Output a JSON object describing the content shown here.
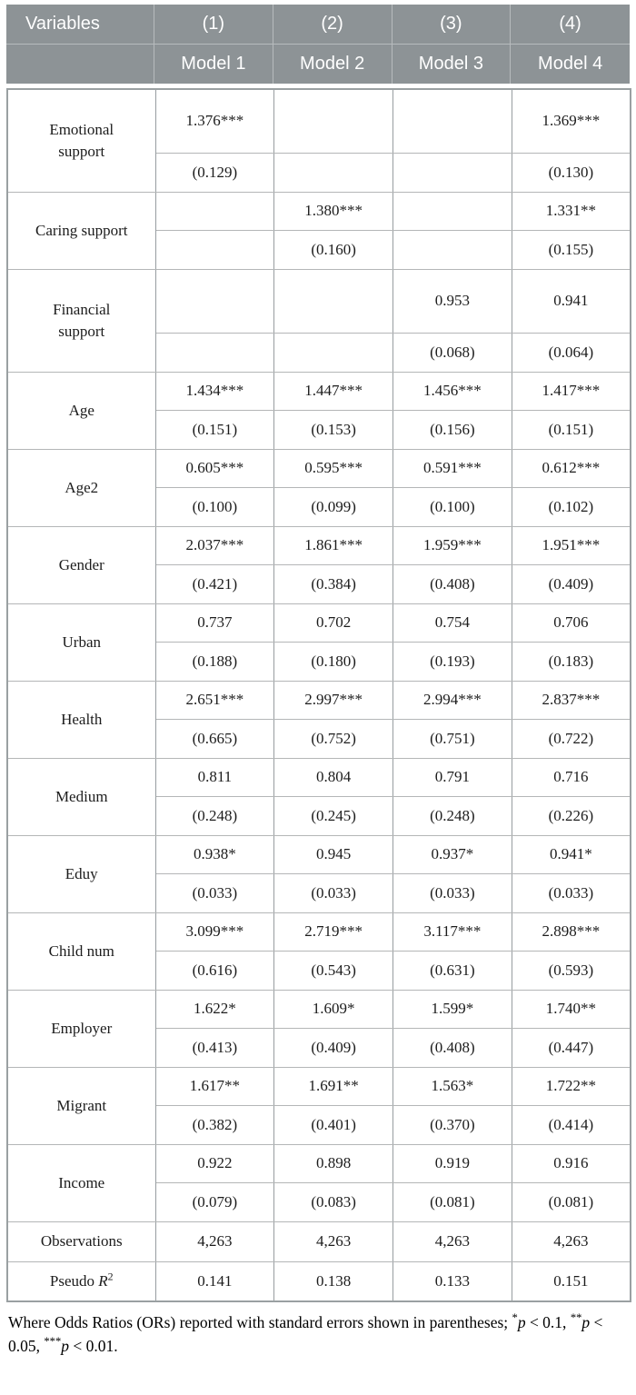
{
  "table": {
    "header": {
      "variables_label": "Variables",
      "col_numbers": [
        "(1)",
        "(2)",
        "(3)",
        "(4)"
      ],
      "model_names": [
        "Model 1",
        "Model 2",
        "Model 3",
        "Model 4"
      ]
    },
    "rows": [
      {
        "label": "Emotional\nsupport",
        "tall": true,
        "or": [
          "1.376***",
          "",
          "",
          "1.369***"
        ],
        "se": [
          "(0.129)",
          "",
          "",
          "(0.130)"
        ]
      },
      {
        "label": "Caring support",
        "or": [
          "",
          "1.380***",
          "",
          "1.331**"
        ],
        "se": [
          "",
          "(0.160)",
          "",
          "(0.155)"
        ]
      },
      {
        "label": "Financial\nsupport",
        "tall": true,
        "or": [
          "",
          "",
          "0.953",
          "0.941"
        ],
        "se": [
          "",
          "",
          "(0.068)",
          "(0.064)"
        ]
      },
      {
        "label": "Age",
        "or": [
          "1.434***",
          "1.447***",
          "1.456***",
          "1.417***"
        ],
        "se": [
          "(0.151)",
          "(0.153)",
          "(0.156)",
          "(0.151)"
        ]
      },
      {
        "label": "Age2",
        "or": [
          "0.605***",
          "0.595***",
          "0.591***",
          "0.612***"
        ],
        "se": [
          "(0.100)",
          "(0.099)",
          "(0.100)",
          "(0.102)"
        ]
      },
      {
        "label": "Gender",
        "or": [
          "2.037***",
          "1.861***",
          "1.959***",
          "1.951***"
        ],
        "se": [
          "(0.421)",
          "(0.384)",
          "(0.408)",
          "(0.409)"
        ]
      },
      {
        "label": "Urban",
        "or": [
          "0.737",
          "0.702",
          "0.754",
          "0.706"
        ],
        "se": [
          "(0.188)",
          "(0.180)",
          "(0.193)",
          "(0.183)"
        ]
      },
      {
        "label": "Health",
        "or": [
          "2.651***",
          "2.997***",
          "2.994***",
          "2.837***"
        ],
        "se": [
          "(0.665)",
          "(0.752)",
          "(0.751)",
          "(0.722)"
        ]
      },
      {
        "label": "Medium",
        "or": [
          "0.811",
          "0.804",
          "0.791",
          "0.716"
        ],
        "se": [
          "(0.248)",
          "(0.245)",
          "(0.248)",
          "(0.226)"
        ]
      },
      {
        "label": "Eduy",
        "or": [
          "0.938*",
          "0.945",
          "0.937*",
          "0.941*"
        ],
        "se": [
          "(0.033)",
          "(0.033)",
          "(0.033)",
          "(0.033)"
        ]
      },
      {
        "label": "Child num",
        "or": [
          "3.099***",
          "2.719***",
          "3.117***",
          "2.898***"
        ],
        "se": [
          "(0.616)",
          "(0.543)",
          "(0.631)",
          "(0.593)"
        ]
      },
      {
        "label": "Employer",
        "or": [
          "1.622*",
          "1.609*",
          "1.599*",
          "1.740**"
        ],
        "se": [
          "(0.413)",
          "(0.409)",
          "(0.408)",
          "(0.447)"
        ]
      },
      {
        "label": "Migrant",
        "or": [
          "1.617**",
          "1.691**",
          "1.563*",
          "1.722**"
        ],
        "se": [
          "(0.382)",
          "(0.401)",
          "(0.370)",
          "(0.414)"
        ]
      },
      {
        "label": "Income",
        "or": [
          "0.922",
          "0.898",
          "0.919",
          "0.916"
        ],
        "se": [
          "(0.079)",
          "(0.083)",
          "(0.081)",
          "(0.081)"
        ]
      }
    ],
    "summary": [
      {
        "label": "Observations",
        "values": [
          "4,263",
          "4,263",
          "4,263",
          "4,263"
        ]
      },
      {
        "label": "Pseudo R2",
        "label_segments": [
          {
            "text": "Pseudo "
          },
          {
            "text": "R",
            "italic": true
          },
          {
            "text": "2",
            "sup": true
          }
        ],
        "values": [
          "0.141",
          "0.138",
          "0.133",
          "0.151"
        ]
      }
    ]
  },
  "footnote": {
    "segments": [
      {
        "text": "Where Odds Ratios (ORs) reported with standard errors shown in parentheses; "
      },
      {
        "text": "*",
        "sup": true
      },
      {
        "text": "p",
        "italic": true
      },
      {
        "text": " < 0.1, "
      },
      {
        "text": "**",
        "sup": true
      },
      {
        "text": "p",
        "italic": true
      },
      {
        "text": " < 0.05, "
      },
      {
        "text": "***",
        "sup": true
      },
      {
        "text": "p",
        "italic": true
      },
      {
        "text": " < 0.01."
      }
    ]
  },
  "colors": {
    "header_bg": "#8d9396",
    "header_text": "#ffffff",
    "header_divider": "#b7bbbd",
    "grid_vertical": "#979da0",
    "grid_horizontal": "#b4b6b7",
    "outer_border": "#9aa0a2",
    "text": "#1c1c1c",
    "page_bg": "#ffffff"
  }
}
